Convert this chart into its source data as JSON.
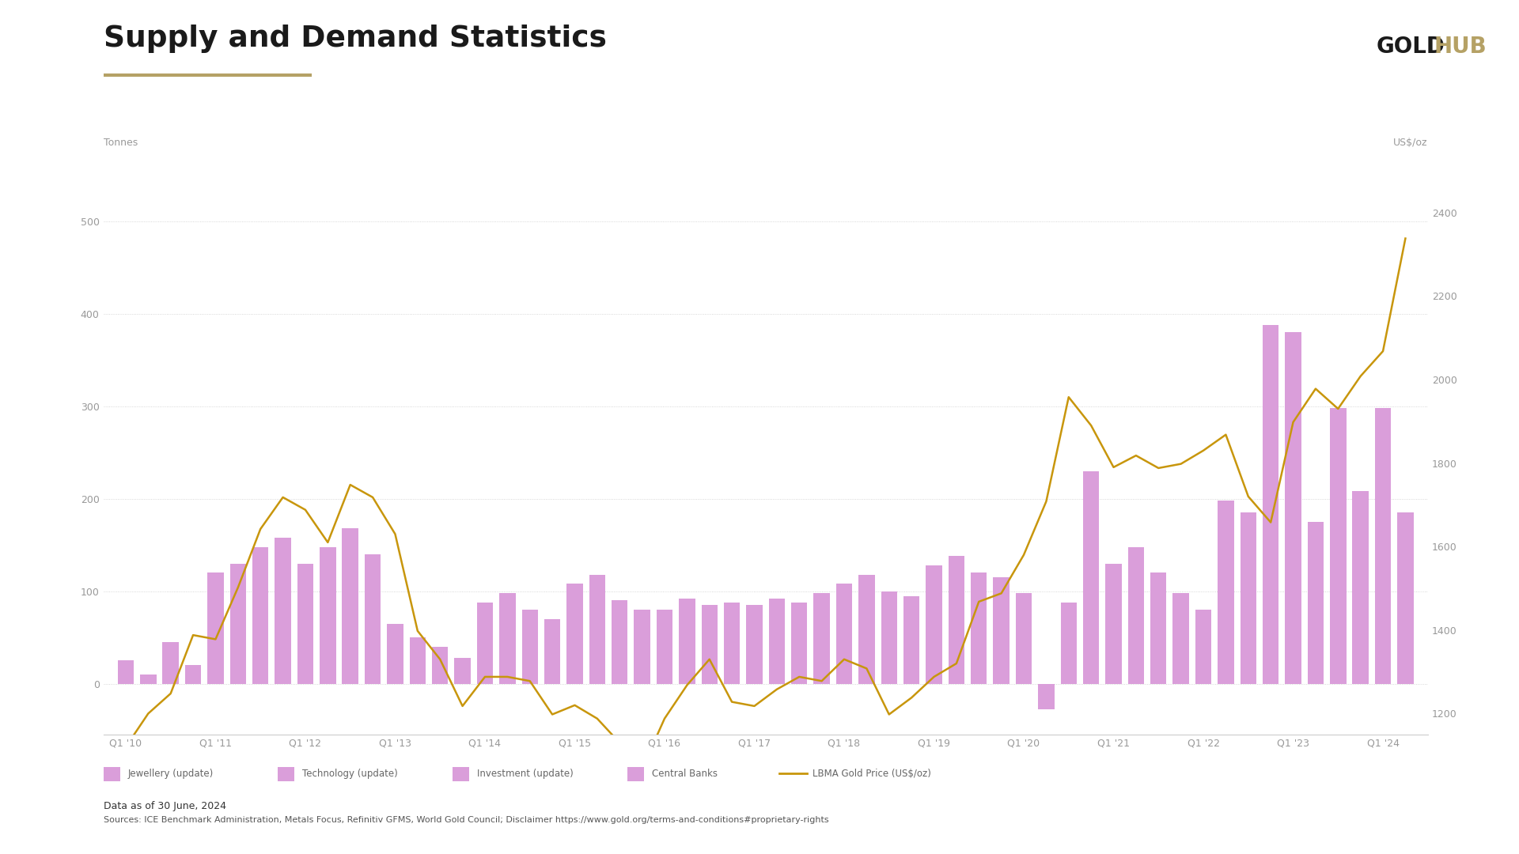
{
  "title": "Supply and Demand Statistics",
  "title_underline_color": "#b5a165",
  "left_ylabel": "Tonnes",
  "right_ylabel": "US$/oz",
  "left_ylim": [
    -55,
    555
  ],
  "right_ylim": [
    1150,
    2500
  ],
  "left_yticks": [
    0,
    100,
    200,
    300,
    400,
    500
  ],
  "right_yticks": [
    1200,
    1400,
    1600,
    1800,
    2000,
    2200,
    2400
  ],
  "background_color": "#ffffff",
  "goldhub_color": "#b5a165",
  "bar_color": "#da9eda",
  "line_color": "#c8960c",
  "x_labels": [
    "Q1 '10",
    "Q1 '11",
    "Q1 '12",
    "Q1 '13",
    "Q1 '14",
    "Q1 '15",
    "Q1 '16",
    "Q1 '17",
    "Q1 '18",
    "Q1 '19",
    "Q1 '20",
    "Q1 '21",
    "Q1 '22",
    "Q1 '23",
    "Q1 '24"
  ],
  "x_positions": [
    0,
    4,
    8,
    12,
    16,
    20,
    24,
    28,
    32,
    36,
    40,
    44,
    48,
    52,
    56
  ],
  "central_banks": [
    25,
    10,
    45,
    20,
    120,
    130,
    148,
    158,
    130,
    148,
    168,
    140,
    65,
    50,
    40,
    28,
    88,
    98,
    80,
    70,
    108,
    118,
    90,
    80,
    80,
    92,
    85,
    88,
    85,
    92,
    88,
    98,
    108,
    118,
    100,
    95,
    128,
    138,
    120,
    115,
    98,
    -28,
    88,
    230,
    130,
    148,
    120,
    98,
    80,
    198,
    185,
    388,
    380,
    175,
    298,
    208,
    298,
    185
  ],
  "gold_price": [
    1120,
    1200,
    1248,
    1388,
    1378,
    1502,
    1642,
    1718,
    1688,
    1610,
    1748,
    1718,
    1630,
    1398,
    1330,
    1218,
    1288,
    1288,
    1278,
    1198,
    1220,
    1188,
    1130,
    1068,
    1188,
    1268,
    1330,
    1228,
    1218,
    1258,
    1288,
    1278,
    1330,
    1308,
    1198,
    1238,
    1288,
    1320,
    1468,
    1488,
    1580,
    1708,
    1958,
    1890,
    1790,
    1818,
    1788,
    1798,
    1830,
    1868,
    1720,
    1658,
    1898,
    1978,
    1930,
    2008,
    2068,
    2338
  ],
  "legend_labels": [
    "Jewellery (update)",
    "Technology (update)",
    "Investment (update)",
    "Central Banks",
    "LBMA Gold Price (US$/oz)"
  ],
  "data_note": "Data as of 30 June, 2024",
  "sources": "Sources: ICE Benchmark Administration, Metals Focus, Refinitiv GFMS, World Gold Council; Disclaimer https://www.gold.org/terms-and-conditions#proprietary-rights",
  "grid_color": "#cccccc",
  "tick_color": "#999999"
}
